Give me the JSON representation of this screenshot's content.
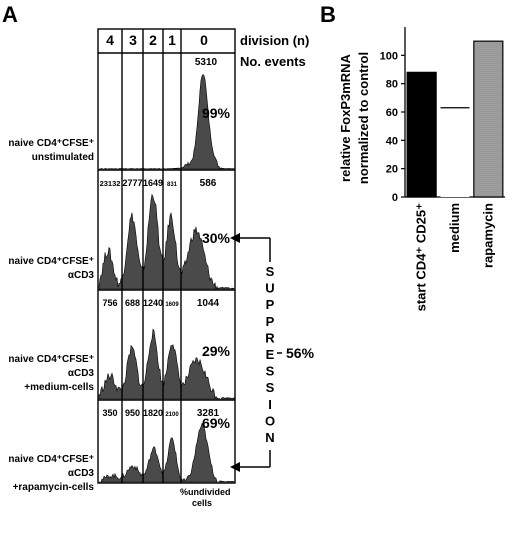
{
  "panel_a": {
    "letter": "A",
    "header_division": "division (n)",
    "header_events": "No. events",
    "divisions": [
      "4",
      "3",
      "2",
      "1",
      "0"
    ],
    "footer_line1": "%undivided",
    "footer_line2": "cells",
    "suppression_letters": [
      "S",
      "U",
      "P",
      "P",
      "R",
      "E",
      "S",
      "S",
      "I",
      "O",
      "N"
    ],
    "suppression_value": "56%",
    "colors": {
      "histogram_fill": "#4a4a4a",
      "outline": "#000000"
    },
    "rows": [
      {
        "label_lines": [
          "naive CD4⁺CFSE⁺",
          "unstimulated"
        ],
        "events": [
          "",
          "",
          "",
          "",
          "5310"
        ],
        "percent": "99%"
      },
      {
        "label_lines": [
          "naive CD4⁺CFSE⁺",
          "αCD3"
        ],
        "events": [
          "23132",
          "2777",
          "1649",
          "831",
          "586"
        ],
        "percent": "30%"
      },
      {
        "label_lines": [
          "naive CD4⁺CFSE⁺",
          "αCD3",
          "+medium-cells"
        ],
        "events": [
          "756",
          "688",
          "1240",
          "1609",
          "1044"
        ],
        "percent": "29%"
      },
      {
        "label_lines": [
          "naive CD4⁺CFSE⁺",
          "αCD3",
          "+rapamycin-cells"
        ],
        "events": [
          "350",
          "950",
          "1820",
          "2100",
          "3281"
        ],
        "percent": "69%"
      }
    ]
  },
  "panel_b": {
    "letter": "B",
    "ylabel_line1": "relative FoxP3mRNA",
    "ylabel_line2": "normalized to control",
    "colors": {
      "start": "#000000",
      "medium": "#ffffff",
      "rapamycin": "#a0a0a0",
      "outline": "#000000"
    }
  },
  "chart_data": {
    "type": "bar",
    "categories": [
      "start CD4⁺ CD25⁺",
      "medium",
      "rapamycin"
    ],
    "values": [
      88,
      63,
      110
    ],
    "ylim": [
      0,
      120
    ],
    "yticks": [
      0,
      20,
      40,
      60,
      80,
      100
    ],
    "ylabel": "relative FoxP3mRNA normalized to control",
    "grid": false
  }
}
